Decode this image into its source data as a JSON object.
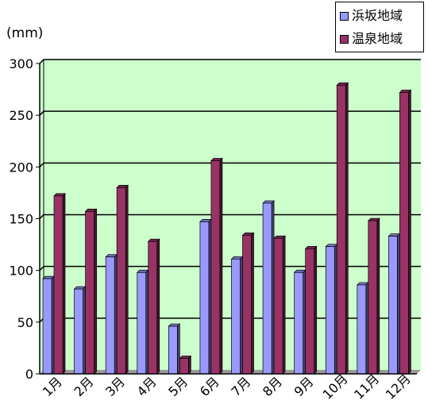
{
  "chart_data": {
    "type": "bar",
    "unit_label": "(mm)",
    "categories": [
      "1月",
      "2月",
      "3月",
      "4月",
      "5月",
      "6月",
      "7月",
      "8月",
      "9月",
      "10月",
      "11月",
      "12月"
    ],
    "series": [
      {
        "name": "浜坂地域",
        "color": "#9999ff",
        "values": [
          92,
          82,
          113,
          98,
          46,
          147,
          111,
          165,
          98,
          123,
          86,
          133
        ]
      },
      {
        "name": "温泉地域",
        "color": "#993366",
        "values": [
          172,
          157,
          180,
          128,
          15,
          206,
          134,
          131,
          121,
          279,
          148,
          272
        ]
      }
    ],
    "yticks": [
      0,
      50,
      100,
      150,
      200,
      250,
      300
    ],
    "ylim": [
      0,
      300
    ],
    "grid": true,
    "plot_background": "#ccffcc",
    "legend_position": "top-right"
  }
}
